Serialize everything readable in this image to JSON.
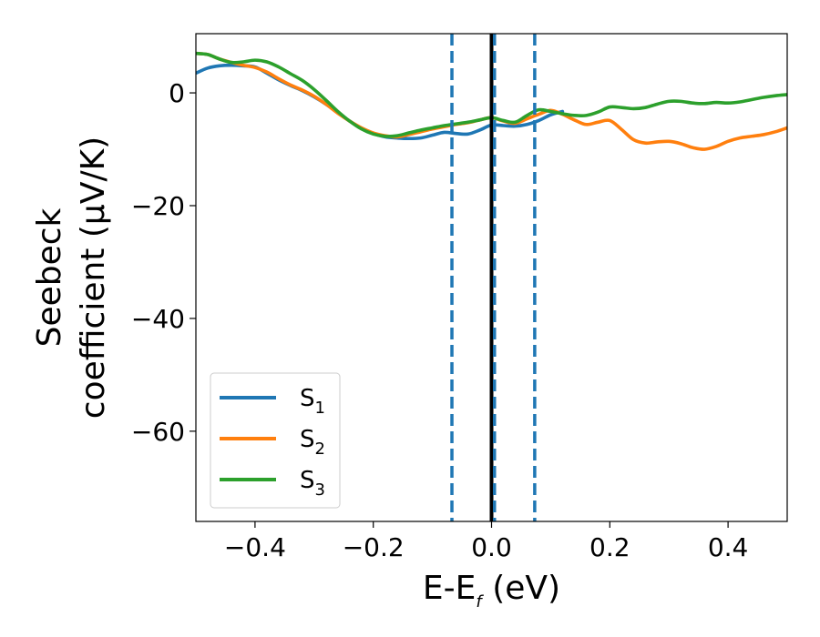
{
  "chart_data": {
    "type": "line",
    "title": "",
    "xlabel": {
      "main": "E-E",
      "sub": "f",
      "unit": " (eV)"
    },
    "ylabel": {
      "line1": "Seebeck",
      "line2": "coefficient  (μV/K)"
    },
    "xlim": [
      -0.5,
      0.5
    ],
    "ylim": [
      -76,
      10.5
    ],
    "xticks": [
      -0.4,
      -0.2,
      0.0,
      0.2,
      0.4
    ],
    "xtick_labels": [
      "−0.4",
      "−0.2",
      "0.0",
      "0.2",
      "0.4"
    ],
    "yticks": [
      0,
      -20,
      -40,
      -60
    ],
    "ytick_labels": [
      "0",
      "−20",
      "−40",
      "−60"
    ],
    "grid": false,
    "legend_position": "lower-left",
    "vertical_lines": [
      {
        "x": -0.067,
        "style": "dashed",
        "color": "#1f77b4"
      },
      {
        "x": 0.0,
        "style": "solid",
        "color": "#000000"
      },
      {
        "x": 0.005,
        "style": "dashed",
        "color": "#1f77b4"
      },
      {
        "x": 0.073,
        "style": "dashed",
        "color": "#1f77b4"
      }
    ],
    "series": [
      {
        "name": "S",
        "sub": "1",
        "color": "#1f77b4",
        "x": [
          -0.5,
          -0.48,
          -0.46,
          -0.44,
          -0.42,
          -0.4,
          -0.38,
          -0.36,
          -0.34,
          -0.32,
          -0.3,
          -0.28,
          -0.26,
          -0.24,
          -0.22,
          -0.2,
          -0.18,
          -0.16,
          -0.14,
          -0.12,
          -0.1,
          -0.08,
          -0.06,
          -0.04,
          -0.02,
          0.0,
          0.02,
          0.04,
          0.06,
          0.08,
          0.1,
          0.12
        ],
        "y": [
          3.5,
          4.4,
          4.8,
          4.9,
          4.8,
          4.6,
          3.5,
          2.3,
          1.3,
          0.4,
          -0.7,
          -2.0,
          -3.5,
          -5.0,
          -6.3,
          -7.2,
          -7.8,
          -8.0,
          -8.1,
          -8.0,
          -7.5,
          -7.0,
          -7.2,
          -7.3,
          -6.6,
          -5.7,
          -5.8,
          -5.9,
          -5.6,
          -4.9,
          -3.9,
          -3.3
        ]
      },
      {
        "name": "S",
        "sub": "2",
        "color": "#ff7f0e",
        "x": [
          -0.5,
          -0.48,
          -0.46,
          -0.44,
          -0.42,
          -0.4,
          -0.38,
          -0.36,
          -0.34,
          -0.32,
          -0.3,
          -0.28,
          -0.26,
          -0.24,
          -0.22,
          -0.2,
          -0.18,
          -0.16,
          -0.14,
          -0.12,
          -0.1,
          -0.08,
          -0.06,
          -0.04,
          -0.02,
          0.0,
          0.02,
          0.04,
          0.06,
          0.08,
          0.1,
          0.12,
          0.14,
          0.16,
          0.18,
          0.2,
          0.22,
          0.24,
          0.26,
          0.28,
          0.3,
          0.32,
          0.34,
          0.36,
          0.38,
          0.4,
          0.42,
          0.44,
          0.46,
          0.48,
          0.5
        ],
        "y": [
          7.0,
          6.8,
          6.0,
          5.4,
          4.9,
          4.5,
          3.7,
          2.5,
          1.4,
          0.5,
          -0.6,
          -2.0,
          -3.6,
          -5.0,
          -6.2,
          -7.1,
          -7.6,
          -7.8,
          -7.4,
          -6.9,
          -6.4,
          -6.0,
          -5.6,
          -5.3,
          -4.8,
          -4.4,
          -5.0,
          -5.4,
          -4.6,
          -3.8,
          -3.1,
          -3.8,
          -4.8,
          -5.6,
          -5.2,
          -4.9,
          -6.5,
          -8.3,
          -8.9,
          -8.7,
          -8.6,
          -9.0,
          -9.7,
          -10.0,
          -9.5,
          -8.6,
          -8.0,
          -7.7,
          -7.4,
          -6.9,
          -6.2
        ]
      },
      {
        "name": "S",
        "sub": "3",
        "color": "#2ca02c",
        "x": [
          -0.5,
          -0.48,
          -0.46,
          -0.44,
          -0.42,
          -0.4,
          -0.38,
          -0.36,
          -0.34,
          -0.32,
          -0.3,
          -0.28,
          -0.26,
          -0.24,
          -0.22,
          -0.2,
          -0.18,
          -0.16,
          -0.14,
          -0.12,
          -0.1,
          -0.08,
          -0.06,
          -0.04,
          -0.02,
          0.0,
          0.02,
          0.04,
          0.06,
          0.08,
          0.1,
          0.12,
          0.14,
          0.16,
          0.18,
          0.2,
          0.22,
          0.24,
          0.26,
          0.28,
          0.3,
          0.32,
          0.34,
          0.36,
          0.38,
          0.4,
          0.42,
          0.44,
          0.46,
          0.48,
          0.5
        ],
        "y": [
          7.0,
          6.8,
          6.0,
          5.4,
          5.5,
          5.8,
          5.5,
          4.6,
          3.4,
          2.2,
          0.6,
          -1.3,
          -3.3,
          -5.0,
          -6.4,
          -7.3,
          -7.7,
          -7.6,
          -7.1,
          -6.6,
          -6.2,
          -5.8,
          -5.5,
          -5.2,
          -4.8,
          -4.4,
          -4.9,
          -5.2,
          -4.0,
          -3.0,
          -3.3,
          -3.7,
          -4.0,
          -4.0,
          -3.4,
          -2.5,
          -2.6,
          -2.8,
          -2.6,
          -2.0,
          -1.5,
          -1.5,
          -1.8,
          -1.9,
          -1.7,
          -1.8,
          -1.6,
          -1.2,
          -0.8,
          -0.5,
          -0.3
        ]
      }
    ]
  }
}
